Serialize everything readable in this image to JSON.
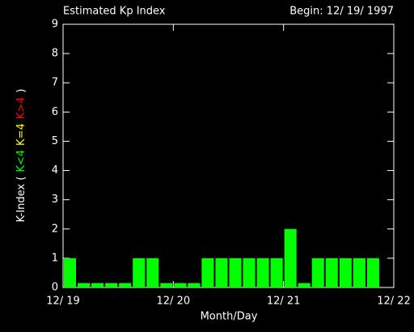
{
  "chart_data": {
    "type": "bar",
    "title": "Estimated Kp Index",
    "subtitle": "Begin: 12/ 19/ 1997",
    "x_label": "Month/Day",
    "y_label": [
      "K-Index (",
      "K<4",
      "K=4",
      "K>4",
      ")"
    ],
    "y_label_colors": [
      "#ffffff",
      "#00ff00",
      "#ffff00",
      "#ff0000",
      "#ffffff"
    ],
    "x": [
      0,
      0.125,
      0.25,
      0.375,
      0.5,
      0.625,
      0.75,
      0.875,
      1,
      1.125,
      1.25,
      1.375,
      1.5,
      1.625,
      1.75,
      1.875,
      2,
      2.125,
      2.25,
      2.375,
      2.5,
      2.625,
      2.75
    ],
    "bin_width": 0.125,
    "values": [
      1,
      0.15,
      0.15,
      0.15,
      0.15,
      1,
      1,
      0.15,
      0.15,
      0.15,
      1,
      1,
      1,
      1,
      1,
      1,
      2,
      0.15,
      1,
      1,
      1,
      1,
      1
    ],
    "color": "#00ff00",
    "xlim": [
      0,
      3
    ],
    "xticks": [
      {
        "value": 0,
        "label": "12/ 19"
      },
      {
        "value": 1,
        "label": "12/ 20"
      },
      {
        "value": 2,
        "label": "12/ 21"
      },
      {
        "value": 3,
        "label": "12/ 22"
      }
    ],
    "ylim": [
      0,
      9
    ],
    "yticks": [
      0,
      1,
      2,
      3,
      4,
      5,
      6,
      7,
      8,
      9
    ]
  }
}
